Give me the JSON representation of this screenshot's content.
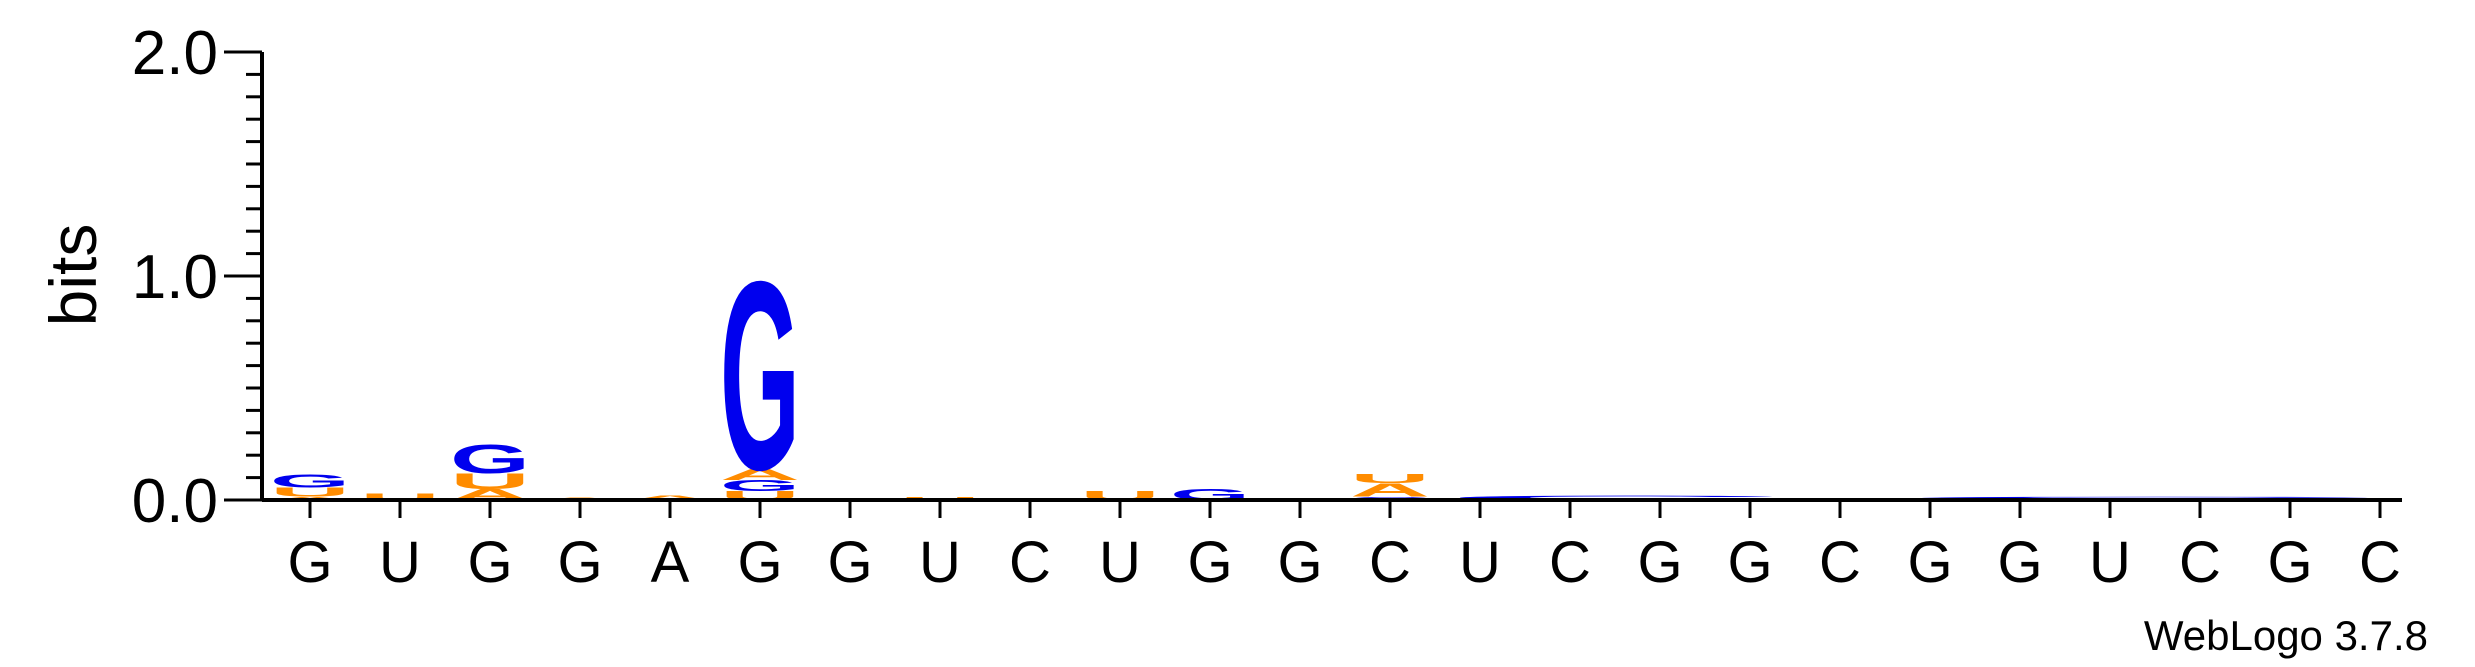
{
  "chart_data": {
    "type": "sequence-logo",
    "ylabel": "bits",
    "ylim": [
      0,
      2.0
    ],
    "y_ticks": [
      {
        "value": 0.0,
        "label": "0.0"
      },
      {
        "value": 1.0,
        "label": "1.0"
      },
      {
        "value": 2.0,
        "label": "2.0"
      }
    ],
    "y_minor_step": 0.1,
    "credit": "WebLogo 3.7.8",
    "colors": {
      "G": "#0000ee",
      "U": "#ff8c00",
      "A": "#ff8c00",
      "C": "#0000ee",
      "axis": "#000000"
    },
    "positions": [
      {
        "label": "G",
        "stack": [
          {
            "letter": "A",
            "bits": 0.015
          },
          {
            "letter": "U",
            "bits": 0.04
          },
          {
            "letter": "G",
            "bits": 0.06
          }
        ],
        "span": 1
      },
      {
        "label": "U",
        "stack": [
          {
            "letter": "U",
            "bits": 0.03
          }
        ],
        "span": 1
      },
      {
        "label": "G",
        "stack": [
          {
            "letter": "A",
            "bits": 0.05
          },
          {
            "letter": "U",
            "bits": 0.07
          },
          {
            "letter": "G",
            "bits": 0.13
          }
        ],
        "span": 1
      },
      {
        "label": "G",
        "stack": [
          {
            "letter": "A",
            "bits": 0.01
          }
        ],
        "span": 1
      },
      {
        "label": "A",
        "stack": [
          {
            "letter": "A",
            "bits": 0.02
          }
        ],
        "span": 1
      },
      {
        "label": "G",
        "stack": [
          {
            "letter": "U",
            "bits": 0.04
          },
          {
            "letter": "G",
            "bits": 0.05
          },
          {
            "letter": "A",
            "bits": 0.05
          },
          {
            "letter": "G",
            "bits": 0.86
          }
        ],
        "span": 1
      },
      {
        "label": "G",
        "stack": [],
        "span": 1
      },
      {
        "label": "U",
        "stack": [
          {
            "letter": "U",
            "bits": 0.015
          }
        ],
        "span": 1
      },
      {
        "label": "C",
        "stack": [],
        "span": 1
      },
      {
        "label": "U",
        "stack": [
          {
            "letter": "U",
            "bits": 0.04
          }
        ],
        "span": 1
      },
      {
        "label": "G",
        "stack": [
          {
            "letter": "G",
            "bits": 0.05
          }
        ],
        "span": 1
      },
      {
        "label": "G",
        "stack": [],
        "span": 1
      },
      {
        "label": "C",
        "stack": [
          {
            "letter": "C",
            "bits": 0.015
          },
          {
            "letter": "A",
            "bits": 0.06
          },
          {
            "letter": "U",
            "bits": 0.04
          }
        ],
        "span": 1
      },
      {
        "label": "U",
        "stack": [
          {
            "letter": "C",
            "bits": 0.02
          }
        ],
        "span": 4,
        "ragged": true
      },
      {
        "label": "C",
        "stack": [],
        "span": 0
      },
      {
        "label": "G",
        "stack": [],
        "span": 0
      },
      {
        "label": "G",
        "stack": [],
        "span": 0
      },
      {
        "label": "C",
        "stack": [],
        "span": 1
      },
      {
        "label": "G",
        "stack": [
          {
            "letter": "G",
            "bits": 0.015
          }
        ],
        "span": 6,
        "ragged": true
      },
      {
        "label": "G",
        "stack": [],
        "span": 0
      },
      {
        "label": "U",
        "stack": [],
        "span": 0
      },
      {
        "label": "C",
        "stack": [],
        "span": 0
      },
      {
        "label": "G",
        "stack": [],
        "span": 0
      },
      {
        "label": "C",
        "stack": [],
        "span": 0
      }
    ]
  }
}
